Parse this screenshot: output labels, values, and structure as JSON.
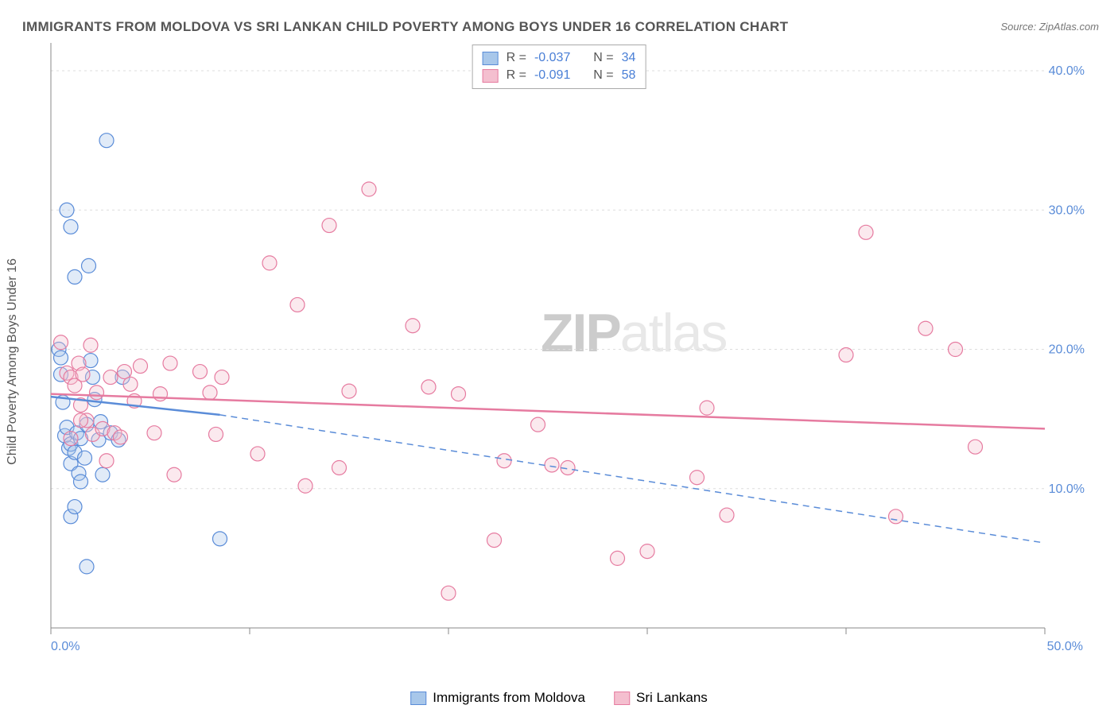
{
  "title": "IMMIGRANTS FROM MOLDOVA VS SRI LANKAN CHILD POVERTY AMONG BOYS UNDER 16 CORRELATION CHART",
  "source": "Source: ZipAtlas.com",
  "watermark_a": "ZIP",
  "watermark_b": "atlas",
  "ylabel": "Child Poverty Among Boys Under 16",
  "chart": {
    "type": "scatter",
    "background_color": "#ffffff",
    "grid_color": "#dddddd",
    "axis_color": "#888888",
    "tick_label_color": "#5a8cd8",
    "tick_label_fontsize": 16,
    "axis_label_color": "#555555",
    "xlim": [
      0,
      50
    ],
    "ylim": [
      0,
      42
    ],
    "xticks": [
      0,
      10,
      20,
      30,
      40,
      50
    ],
    "xtick_labels": [
      "0.0%",
      "",
      "",
      "",
      "",
      "50.0%"
    ],
    "yticks": [
      10,
      20,
      30,
      40
    ],
    "ytick_labels": [
      "10.0%",
      "20.0%",
      "30.0%",
      "40.0%"
    ],
    "marker_radius": 9,
    "marker_opacity": 0.35,
    "series": [
      {
        "name": "Immigrants from Moldova",
        "color_fill": "#a8c7ea",
        "color_stroke": "#5a8cd8",
        "r_label": "R =",
        "r_value": "-0.037",
        "n_label": "N =",
        "n_value": "34",
        "trend_solid": {
          "x1": 0,
          "y1": 16.6,
          "x2": 8.5,
          "y2": 15.3
        },
        "trend_dash": {
          "x1": 8.5,
          "y1": 15.3,
          "x2": 50,
          "y2": 6.1
        },
        "points": [
          [
            0.4,
            20.0
          ],
          [
            0.5,
            19.4
          ],
          [
            0.5,
            18.2
          ],
          [
            0.6,
            16.2
          ],
          [
            0.7,
            13.8
          ],
          [
            0.8,
            14.4
          ],
          [
            0.9,
            12.9
          ],
          [
            1.0,
            11.8
          ],
          [
            1.0,
            13.2
          ],
          [
            1.2,
            12.6
          ],
          [
            1.3,
            14.0
          ],
          [
            1.4,
            11.1
          ],
          [
            1.5,
            10.5
          ],
          [
            1.5,
            13.6
          ],
          [
            1.7,
            12.2
          ],
          [
            1.8,
            14.6
          ],
          [
            2.0,
            19.2
          ],
          [
            2.1,
            18.0
          ],
          [
            2.4,
            13.5
          ],
          [
            2.6,
            11.0
          ],
          [
            2.2,
            16.4
          ],
          [
            2.5,
            14.8
          ],
          [
            3.0,
            14.0
          ],
          [
            1.0,
            28.8
          ],
          [
            1.2,
            25.2
          ],
          [
            0.8,
            30.0
          ],
          [
            1.9,
            26.0
          ],
          [
            2.8,
            35.0
          ],
          [
            1.0,
            8.0
          ],
          [
            1.8,
            4.4
          ],
          [
            1.2,
            8.7
          ],
          [
            3.4,
            13.5
          ],
          [
            8.5,
            6.4
          ],
          [
            3.6,
            18.0
          ]
        ]
      },
      {
        "name": "Sri Lankans",
        "color_fill": "#f4bfcf",
        "color_stroke": "#e67ba0",
        "r_label": "R =",
        "r_value": "-0.091",
        "n_label": "N =",
        "n_value": "58",
        "trend_solid": {
          "x1": 0,
          "y1": 16.8,
          "x2": 50,
          "y2": 14.3
        },
        "points": [
          [
            0.5,
            20.5
          ],
          [
            0.8,
            18.3
          ],
          [
            1.0,
            18.0
          ],
          [
            1.2,
            17.4
          ],
          [
            1.4,
            19.0
          ],
          [
            1.6,
            18.2
          ],
          [
            1.5,
            16.0
          ],
          [
            1.8,
            14.9
          ],
          [
            2.1,
            13.9
          ],
          [
            2.3,
            16.9
          ],
          [
            2.6,
            14.3
          ],
          [
            3.0,
            18.0
          ],
          [
            3.2,
            14.0
          ],
          [
            3.7,
            18.4
          ],
          [
            4.0,
            17.5
          ],
          [
            4.2,
            16.3
          ],
          [
            4.5,
            18.8
          ],
          [
            5.2,
            14.0
          ],
          [
            5.5,
            16.8
          ],
          [
            6.0,
            19.0
          ],
          [
            7.5,
            18.4
          ],
          [
            8.0,
            16.9
          ],
          [
            8.3,
            13.9
          ],
          [
            8.6,
            18.0
          ],
          [
            10.4,
            12.5
          ],
          [
            11.0,
            26.2
          ],
          [
            12.4,
            23.2
          ],
          [
            12.8,
            10.2
          ],
          [
            14.0,
            28.9
          ],
          [
            14.5,
            11.5
          ],
          [
            15.0,
            17.0
          ],
          [
            16.0,
            31.5
          ],
          [
            18.2,
            21.7
          ],
          [
            19.0,
            17.3
          ],
          [
            20.0,
            2.5
          ],
          [
            20.5,
            16.8
          ],
          [
            22.3,
            6.3
          ],
          [
            22.8,
            12.0
          ],
          [
            24.5,
            14.6
          ],
          [
            25.2,
            11.7
          ],
          [
            26.0,
            11.5
          ],
          [
            28.5,
            5.0
          ],
          [
            30.0,
            5.5
          ],
          [
            32.5,
            10.8
          ],
          [
            33.0,
            15.8
          ],
          [
            34.0,
            8.1
          ],
          [
            40.0,
            19.6
          ],
          [
            41.0,
            28.4
          ],
          [
            42.5,
            8.0
          ],
          [
            44.0,
            21.5
          ],
          [
            45.5,
            20.0
          ],
          [
            46.5,
            13.0
          ],
          [
            2.8,
            12.0
          ],
          [
            6.2,
            11.0
          ],
          [
            3.5,
            13.7
          ],
          [
            1.0,
            13.6
          ],
          [
            1.5,
            14.9
          ],
          [
            2.0,
            20.3
          ]
        ]
      }
    ]
  },
  "legend_bottom": [
    {
      "label": "Immigrants from Moldova",
      "fill": "#a8c7ea",
      "stroke": "#5a8cd8"
    },
    {
      "label": "Sri Lankans",
      "fill": "#f4bfcf",
      "stroke": "#e67ba0"
    }
  ]
}
